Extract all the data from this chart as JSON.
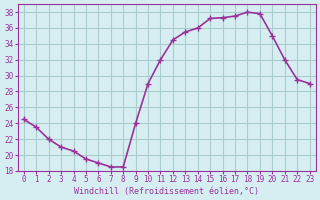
{
  "x": [
    0,
    1,
    2,
    3,
    4,
    5,
    6,
    7,
    8,
    9,
    10,
    11,
    12,
    13,
    14,
    15,
    16,
    17,
    18,
    19,
    20,
    21,
    22,
    23
  ],
  "y": [
    24.5,
    23.5,
    22,
    21,
    20.5,
    19.5,
    19,
    18.5,
    18.5,
    24,
    29,
    32,
    34.5,
    35.5,
    36,
    37.2,
    37.3,
    37.5,
    38,
    37.8,
    35,
    32,
    29.5,
    29
  ],
  "xlim": [
    -0.5,
    23.5
  ],
  "ylim": [
    18,
    39
  ],
  "yticks": [
    18,
    20,
    22,
    24,
    26,
    28,
    30,
    32,
    34,
    36,
    38
  ],
  "xticks": [
    0,
    1,
    2,
    3,
    4,
    5,
    6,
    7,
    8,
    9,
    10,
    11,
    12,
    13,
    14,
    15,
    16,
    17,
    18,
    19,
    20,
    21,
    22,
    23
  ],
  "xlabel": "Windchill (Refroidissement éolien,°C)",
  "line_color": "#993399",
  "marker": "+",
  "bg_color": "#d6eef2",
  "grid_color": "#aacccc",
  "tick_color": "#993399",
  "label_color": "#993399",
  "font_family": "monospace"
}
